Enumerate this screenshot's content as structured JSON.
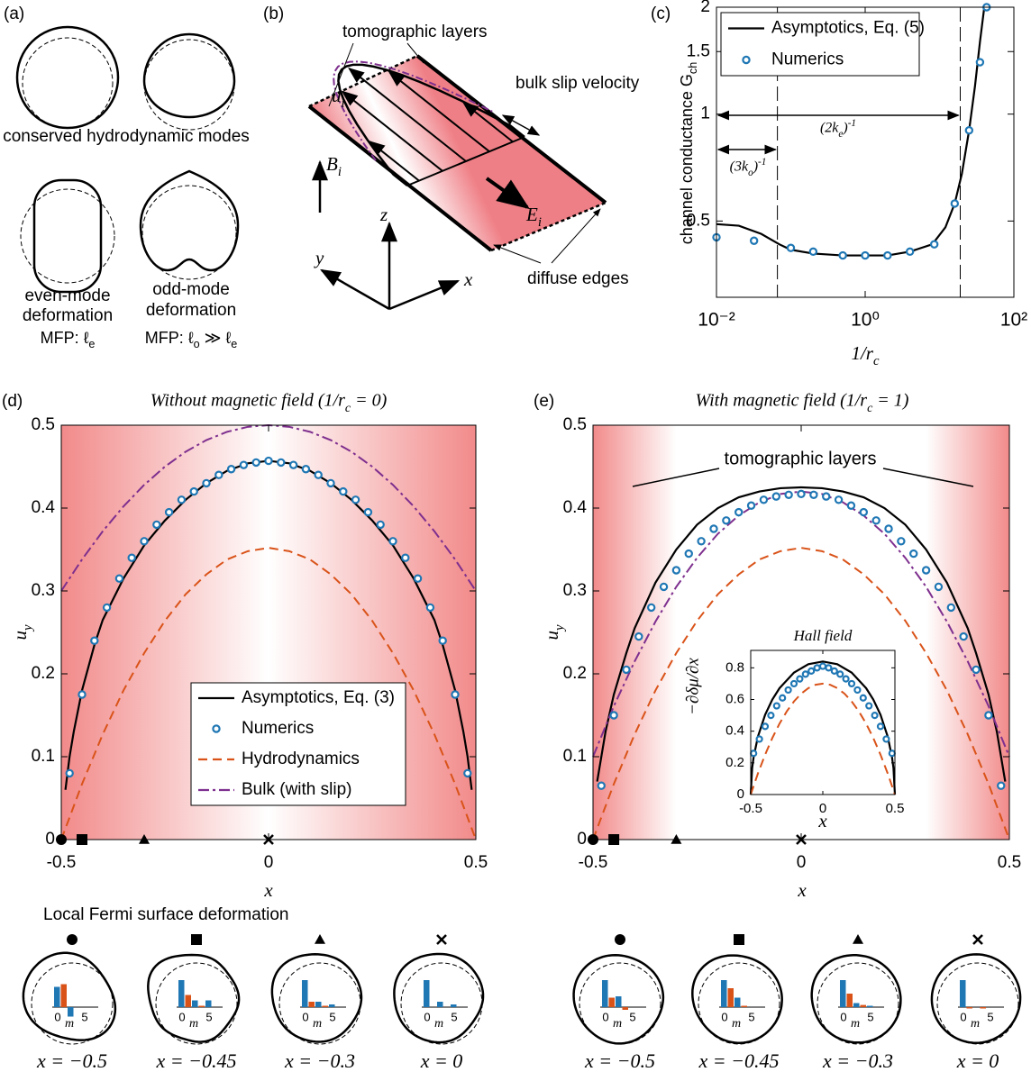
{
  "panels": {
    "a": {
      "label": "(a)",
      "caption_top": "conserved hydrodynamic modes",
      "even": [
        "even-mode",
        "deformation"
      ],
      "even_mfp": "MFP: ℓ_e",
      "odd": [
        "odd-mode",
        "deformation"
      ],
      "odd_mfp": "MFP: ℓ_o ≫ ℓ_e"
    },
    "b": {
      "label": "(b)",
      "layers": "tomographic layers",
      "slip": "bulk slip velocity",
      "u": "u_i",
      "B": "B_i",
      "E": "E_i",
      "z": "z",
      "y": "y",
      "x": "x",
      "edges": "diffuse edges"
    }
  },
  "chart_data": [
    {
      "type": "line",
      "panel": "(c)",
      "xscale": "log",
      "yscale": "log",
      "xlim": [
        0.01,
        100
      ],
      "ylim": [
        0.305,
        2
      ],
      "xticks": [
        {
          "value": 0.01,
          "label": "10⁻²"
        },
        {
          "value": 1,
          "label": "10⁰"
        },
        {
          "value": 100,
          "label": "10²"
        }
      ],
      "yticks": [
        0.5,
        1,
        1.5,
        2
      ],
      "xlabel": "1/r_c",
      "ylabel": "channel conductance G_{ch}",
      "legend": "upper left",
      "vlines": [
        0.066,
        19
      ],
      "annotations": [
        {
          "text": "(2k_e)^{-1}"
        },
        {
          "text": "(3k_o)^{-1}"
        }
      ],
      "series": [
        {
          "name": "Asymptotics, Eq. (5)",
          "color": "#000000",
          "style": "solid",
          "x": [
            0.01,
            0.02,
            0.04,
            0.07,
            0.1,
            0.2,
            0.5,
            1,
            2,
            4,
            8,
            12,
            16,
            20,
            25,
            30,
            35,
            40
          ],
          "values": [
            0.49,
            0.485,
            0.46,
            0.43,
            0.415,
            0.405,
            0.4,
            0.4,
            0.4,
            0.41,
            0.43,
            0.48,
            0.56,
            0.68,
            0.9,
            1.2,
            1.6,
            2.0
          ]
        },
        {
          "name": "Numerics",
          "color": "#1f77b4",
          "style": "markers",
          "x": [
            0.01,
            0.032,
            0.1,
            0.2,
            0.5,
            1,
            2,
            4,
            8.5,
            16,
            25,
            35,
            43
          ],
          "values": [
            0.45,
            0.44,
            0.42,
            0.41,
            0.4,
            0.4,
            0.4,
            0.41,
            0.43,
            0.56,
            0.9,
            1.4,
            2.0
          ]
        }
      ]
    },
    {
      "type": "line",
      "panel": "(d)",
      "title": "Without magnetic field (1/r_c = 0)",
      "xlim": [
        -0.5,
        0.5
      ],
      "ylim": [
        0,
        0.5
      ],
      "xticks": [
        -0.5,
        0,
        0.5
      ],
      "yticks": [
        0,
        0.1,
        0.2,
        0.3,
        0.4,
        0.5
      ],
      "xlabel": "x",
      "ylabel": "u_y",
      "legend": "lower center",
      "markers": [
        {
          "x": -0.5,
          "shape": "circle"
        },
        {
          "x": -0.45,
          "shape": "square"
        },
        {
          "x": -0.3,
          "shape": "triangle"
        },
        {
          "x": 0,
          "shape": "cross"
        }
      ],
      "series": [
        {
          "name": "Asymptotics, Eq. (3)",
          "color": "#000000",
          "style": "solid",
          "x": [
            -0.49,
            -0.48,
            -0.47,
            -0.45,
            -0.42,
            -0.4,
            -0.35,
            -0.3,
            -0.25,
            -0.2,
            -0.15,
            -0.1,
            -0.05,
            0,
            0.05,
            0.1,
            0.15,
            0.2,
            0.25,
            0.3,
            0.35,
            0.4,
            0.42,
            0.45,
            0.47,
            0.48,
            0.49
          ],
          "values": [
            0.06,
            0.1,
            0.13,
            0.18,
            0.235,
            0.265,
            0.315,
            0.355,
            0.385,
            0.41,
            0.43,
            0.445,
            0.454,
            0.457,
            0.454,
            0.445,
            0.43,
            0.41,
            0.385,
            0.355,
            0.315,
            0.265,
            0.235,
            0.18,
            0.13,
            0.1,
            0.06
          ]
        },
        {
          "name": "Numerics",
          "color": "#1f77b4",
          "style": "markers",
          "x": [
            -0.48,
            -0.45,
            -0.42,
            -0.39,
            -0.36,
            -0.33,
            -0.3,
            -0.27,
            -0.24,
            -0.21,
            -0.18,
            -0.15,
            -0.12,
            -0.09,
            -0.06,
            -0.03,
            0,
            0.03,
            0.06,
            0.09,
            0.12,
            0.15,
            0.18,
            0.21,
            0.24,
            0.27,
            0.3,
            0.33,
            0.36,
            0.39,
            0.42,
            0.45,
            0.48
          ],
          "values": [
            0.08,
            0.175,
            0.24,
            0.28,
            0.315,
            0.34,
            0.36,
            0.38,
            0.395,
            0.41,
            0.42,
            0.43,
            0.44,
            0.447,
            0.452,
            0.455,
            0.457,
            0.455,
            0.452,
            0.447,
            0.44,
            0.43,
            0.42,
            0.41,
            0.395,
            0.38,
            0.36,
            0.34,
            0.315,
            0.28,
            0.24,
            0.175,
            0.08
          ]
        },
        {
          "name": "Hydrodynamics",
          "color": "#d95319",
          "style": "dashed",
          "x": [
            -0.5,
            -0.45,
            -0.4,
            -0.35,
            -0.3,
            -0.25,
            -0.2,
            -0.15,
            -0.1,
            -0.05,
            0,
            0.05,
            0.1,
            0.15,
            0.2,
            0.25,
            0.3,
            0.35,
            0.4,
            0.45,
            0.5
          ],
          "values": [
            0,
            0.067,
            0.127,
            0.18,
            0.225,
            0.264,
            0.296,
            0.32,
            0.338,
            0.348,
            0.352,
            0.348,
            0.338,
            0.32,
            0.296,
            0.264,
            0.225,
            0.18,
            0.127,
            0.067,
            0
          ]
        },
        {
          "name": "Bulk (with slip)",
          "color": "#7e2f8e",
          "style": "dashdot",
          "x": [
            -0.5,
            -0.45,
            -0.4,
            -0.35,
            -0.3,
            -0.25,
            -0.2,
            -0.15,
            -0.1,
            -0.05,
            0,
            0.05,
            0.1,
            0.15,
            0.2,
            0.25,
            0.3,
            0.35,
            0.4,
            0.45,
            0.5
          ],
          "values": [
            0.3,
            0.338,
            0.372,
            0.402,
            0.428,
            0.45,
            0.468,
            0.482,
            0.492,
            0.498,
            0.5,
            0.498,
            0.492,
            0.482,
            0.468,
            0.45,
            0.428,
            0.402,
            0.372,
            0.338,
            0.3
          ]
        }
      ]
    },
    {
      "type": "line",
      "panel": "(e)",
      "title": "With magnetic field (1/r_c = 1)",
      "xlim": [
        -0.5,
        0.5
      ],
      "ylim": [
        0,
        0.5
      ],
      "xticks": [
        -0.5,
        0,
        0.5
      ],
      "yticks": [
        0,
        0.1,
        0.2,
        0.3,
        0.4,
        0.5
      ],
      "xlabel": "x",
      "ylabel": "u_y",
      "annotations": [
        {
          "text": "tomographic layers"
        }
      ],
      "markers": [
        {
          "x": -0.5,
          "shape": "circle"
        },
        {
          "x": -0.45,
          "shape": "square"
        },
        {
          "x": -0.3,
          "shape": "triangle"
        },
        {
          "x": 0,
          "shape": "cross"
        }
      ],
      "series": [
        {
          "color": "#000000",
          "style": "solid",
          "x": [
            -0.49,
            -0.48,
            -0.47,
            -0.45,
            -0.42,
            -0.4,
            -0.35,
            -0.3,
            -0.25,
            -0.2,
            -0.15,
            -0.1,
            -0.05,
            0,
            0.05,
            0.1,
            0.15,
            0.2,
            0.25,
            0.3,
            0.35,
            0.4,
            0.42,
            0.45,
            0.47,
            0.48,
            0.49
          ],
          "values": [
            0.07,
            0.1,
            0.13,
            0.175,
            0.225,
            0.255,
            0.31,
            0.35,
            0.38,
            0.4,
            0.413,
            0.42,
            0.424,
            0.425,
            0.424,
            0.42,
            0.413,
            0.4,
            0.38,
            0.35,
            0.31,
            0.255,
            0.225,
            0.175,
            0.13,
            0.1,
            0.07
          ]
        },
        {
          "color": "#1f77b4",
          "style": "markers",
          "x": [
            -0.48,
            -0.45,
            -0.42,
            -0.39,
            -0.36,
            -0.33,
            -0.3,
            -0.27,
            -0.24,
            -0.21,
            -0.18,
            -0.15,
            -0.12,
            -0.09,
            -0.06,
            -0.03,
            0,
            0.03,
            0.06,
            0.09,
            0.12,
            0.15,
            0.18,
            0.21,
            0.24,
            0.27,
            0.3,
            0.33,
            0.36,
            0.39,
            0.42,
            0.45,
            0.48
          ],
          "values": [
            0.065,
            0.15,
            0.205,
            0.245,
            0.28,
            0.305,
            0.325,
            0.345,
            0.36,
            0.375,
            0.385,
            0.395,
            0.403,
            0.41,
            0.414,
            0.416,
            0.417,
            0.416,
            0.414,
            0.41,
            0.403,
            0.395,
            0.385,
            0.375,
            0.36,
            0.345,
            0.325,
            0.305,
            0.28,
            0.245,
            0.205,
            0.15,
            0.065
          ]
        },
        {
          "color": "#d95319",
          "style": "dashed",
          "x": [
            -0.5,
            -0.45,
            -0.4,
            -0.35,
            -0.3,
            -0.25,
            -0.2,
            -0.15,
            -0.1,
            -0.05,
            0,
            0.05,
            0.1,
            0.15,
            0.2,
            0.25,
            0.3,
            0.35,
            0.4,
            0.45,
            0.5
          ],
          "values": [
            0,
            0.067,
            0.127,
            0.18,
            0.225,
            0.264,
            0.296,
            0.32,
            0.338,
            0.348,
            0.352,
            0.348,
            0.338,
            0.32,
            0.296,
            0.264,
            0.225,
            0.18,
            0.127,
            0.067,
            0
          ]
        },
        {
          "color": "#7e2f8e",
          "style": "dashdot",
          "x": [
            -0.5,
            -0.45,
            -0.4,
            -0.35,
            -0.3,
            -0.25,
            -0.2,
            -0.15,
            -0.1,
            -0.05,
            0,
            0.05,
            0.1,
            0.15,
            0.2,
            0.25,
            0.3,
            0.35,
            0.4,
            0.45,
            0.5
          ],
          "values": [
            0.1,
            0.161,
            0.215,
            0.263,
            0.305,
            0.34,
            0.369,
            0.391,
            0.407,
            0.417,
            0.42,
            0.417,
            0.407,
            0.391,
            0.369,
            0.34,
            0.305,
            0.263,
            0.215,
            0.161,
            0.1
          ]
        }
      ]
    },
    {
      "type": "line",
      "title": "Hall field",
      "xlim": [
        -0.5,
        0.5
      ],
      "ylim": [
        0,
        0.91
      ],
      "xticks": [
        -0.5,
        0,
        0.5
      ],
      "yticks": [
        0,
        0.2,
        0.4,
        0.6,
        0.8
      ],
      "xlabel": "x",
      "ylabel": "−∂δμ/∂x",
      "series": [
        {
          "color": "#000000",
          "style": "solid",
          "x": [
            -0.5,
            -0.49,
            -0.48,
            -0.45,
            -0.4,
            -0.35,
            -0.3,
            -0.2,
            -0.1,
            0,
            0.1,
            0.2,
            0.3,
            0.35,
            0.4,
            0.45,
            0.48,
            0.49,
            0.5
          ],
          "values": [
            0,
            0.167,
            0.235,
            0.366,
            0.504,
            0.6,
            0.672,
            0.77,
            0.823,
            0.84,
            0.823,
            0.77,
            0.672,
            0.6,
            0.504,
            0.366,
            0.235,
            0.167,
            0
          ]
        },
        {
          "color": "#1f77b4",
          "style": "markers",
          "x": [
            -0.48,
            -0.44,
            -0.4,
            -0.36,
            -0.32,
            -0.28,
            -0.24,
            -0.2,
            -0.16,
            -0.12,
            -0.08,
            -0.04,
            0,
            0.04,
            0.08,
            0.12,
            0.16,
            0.2,
            0.24,
            0.28,
            0.32,
            0.36,
            0.4,
            0.44,
            0.48
          ],
          "values": [
            0.26,
            0.35,
            0.43,
            0.5,
            0.56,
            0.61,
            0.66,
            0.7,
            0.73,
            0.76,
            0.78,
            0.8,
            0.81,
            0.8,
            0.78,
            0.76,
            0.73,
            0.7,
            0.66,
            0.61,
            0.56,
            0.5,
            0.43,
            0.35,
            0.26
          ]
        },
        {
          "color": "#d95319",
          "style": "dashed",
          "x": [
            -0.5,
            -0.45,
            -0.4,
            -0.35,
            -0.3,
            -0.25,
            -0.2,
            -0.15,
            -0.1,
            -0.05,
            0,
            0.05,
            0.1,
            0.15,
            0.2,
            0.25,
            0.3,
            0.35,
            0.4,
            0.45,
            0.5
          ],
          "values": [
            0,
            0.133,
            0.252,
            0.357,
            0.448,
            0.525,
            0.588,
            0.637,
            0.672,
            0.693,
            0.7,
            0.693,
            0.672,
            0.637,
            0.588,
            0.525,
            0.448,
            0.357,
            0.252,
            0.133,
            0
          ]
        }
      ]
    }
  ],
  "fermi": {
    "title": "Local Fermi surface deformation",
    "m_label": "m",
    "m_ticks": [
      0,
      5
    ],
    "colors": [
      "#1f77b4",
      "#d95319"
    ],
    "groups": [
      {
        "items": [
          {
            "marker": "circle",
            "label": "x = −0.5",
            "values": [
              0.75,
              0.85,
              -0.35,
              0,
              0,
              0
            ]
          },
          {
            "marker": "square",
            "label": "x = −0.45",
            "values": [
              1.0,
              0.45,
              0.25,
              0.05,
              0.25,
              0
            ]
          },
          {
            "marker": "triangle",
            "label": "x = −0.3",
            "values": [
              1.0,
              0.2,
              0.2,
              0.05,
              0.1,
              0
            ]
          },
          {
            "marker": "cross",
            "label": "x = 0",
            "values": [
              1.0,
              0,
              0.2,
              0,
              0.1,
              0
            ]
          }
        ]
      },
      {
        "items": [
          {
            "marker": "circle",
            "label": "x = −0.5",
            "values": [
              1.0,
              0.35,
              0.4,
              -0.1,
              0,
              0
            ]
          },
          {
            "marker": "square",
            "label": "x = −0.45",
            "values": [
              1.0,
              0.7,
              0.35,
              0.05,
              0,
              0
            ]
          },
          {
            "marker": "triangle",
            "label": "x = −0.3",
            "values": [
              1.0,
              0.5,
              0.15,
              0.08,
              0.05,
              0
            ]
          },
          {
            "marker": "cross",
            "label": "x = 0",
            "values": [
              1.0,
              -0.05,
              0,
              -0.05,
              0,
              0
            ]
          }
        ]
      }
    ]
  }
}
